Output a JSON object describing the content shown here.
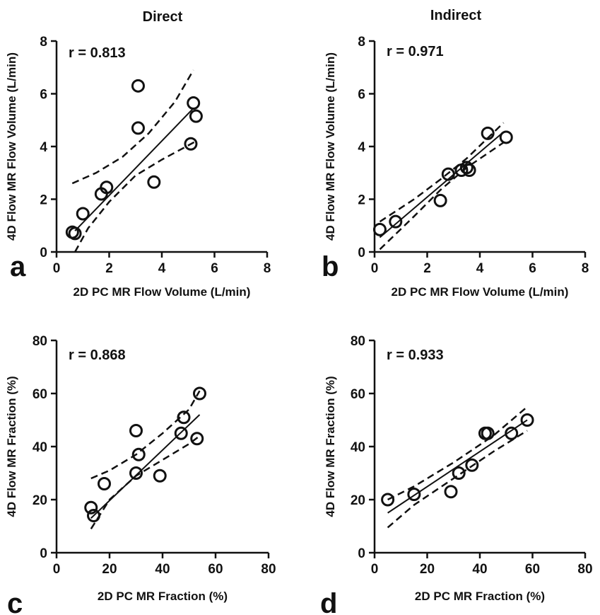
{
  "column_titles": [
    "Direct",
    "Indirect"
  ],
  "chart_data": [
    {
      "type": "scatter",
      "panel": "a",
      "title": "Direct",
      "r_label": "r = 0.813",
      "xlabel": "2D PC MR Flow Volume (L/min)",
      "ylabel": "4D Flow MR Flow Volume (L/min)",
      "xlim": [
        0,
        8
      ],
      "ylim": [
        0,
        8
      ],
      "xticks": [
        0,
        2,
        4,
        6,
        8
      ],
      "yticks": [
        0,
        2,
        4,
        6,
        8
      ],
      "points": [
        {
          "x": 0.6,
          "y": 0.75
        },
        {
          "x": 0.7,
          "y": 0.7
        },
        {
          "x": 1.0,
          "y": 1.45
        },
        {
          "x": 1.7,
          "y": 2.2
        },
        {
          "x": 1.9,
          "y": 2.45
        },
        {
          "x": 3.1,
          "y": 6.3
        },
        {
          "x": 3.1,
          "y": 4.7
        },
        {
          "x": 3.7,
          "y": 2.65
        },
        {
          "x": 5.1,
          "y": 4.1
        },
        {
          "x": 5.2,
          "y": 5.65
        },
        {
          "x": 5.3,
          "y": 5.15
        }
      ],
      "fit": [
        [
          0.7,
          0.8
        ],
        [
          5.2,
          5.45
        ]
      ],
      "ci_upper": [
        [
          0.6,
          2.6
        ],
        [
          1.5,
          3.0
        ],
        [
          2.5,
          3.6
        ],
        [
          3.5,
          4.5
        ],
        [
          4.5,
          5.7
        ],
        [
          5.2,
          6.9
        ]
      ],
      "ci_lower": [
        [
          0.7,
          0.0
        ],
        [
          1.2,
          0.9
        ],
        [
          2.0,
          1.9
        ],
        [
          3.0,
          2.9
        ],
        [
          4.0,
          3.5
        ],
        [
          5.3,
          4.2
        ]
      ]
    },
    {
      "type": "scatter",
      "panel": "b",
      "title": "Indirect",
      "r_label": "r = 0.971",
      "xlabel": "2D PC MR Flow Volume (L/min)",
      "ylabel": "4D Flow MR Flow Volume (L/min)",
      "xlim": [
        0,
        8
      ],
      "ylim": [
        0,
        8
      ],
      "xticks": [
        0,
        2,
        4,
        6,
        8
      ],
      "yticks": [
        0,
        2,
        4,
        6,
        8
      ],
      "points": [
        {
          "x": 0.2,
          "y": 0.85
        },
        {
          "x": 0.8,
          "y": 1.15
        },
        {
          "x": 2.5,
          "y": 1.95
        },
        {
          "x": 2.8,
          "y": 2.95
        },
        {
          "x": 3.3,
          "y": 3.1
        },
        {
          "x": 3.5,
          "y": 3.2
        },
        {
          "x": 3.6,
          "y": 3.1
        },
        {
          "x": 4.3,
          "y": 4.5
        },
        {
          "x": 5.0,
          "y": 4.35
        }
      ],
      "fit": [
        [
          0.2,
          0.55
        ],
        [
          4.9,
          4.55
        ]
      ],
      "ci_upper": [
        [
          0.2,
          1.15
        ],
        [
          1.5,
          2.0
        ],
        [
          2.5,
          2.75
        ],
        [
          3.5,
          3.55
        ],
        [
          4.9,
          4.9
        ]
      ],
      "ci_lower": [
        [
          0.2,
          0.1
        ],
        [
          1.5,
          1.35
        ],
        [
          2.5,
          2.35
        ],
        [
          3.5,
          3.2
        ],
        [
          4.9,
          4.15
        ]
      ]
    },
    {
      "type": "scatter",
      "panel": "c",
      "r_label": "r = 0.868",
      "xlabel": "2D PC MR Fraction (%)",
      "ylabel": "4D Flow MR Fraction (%)",
      "xlim": [
        0,
        80
      ],
      "ylim": [
        0,
        80
      ],
      "xticks": [
        0,
        20,
        40,
        60,
        80
      ],
      "yticks": [
        0,
        20,
        40,
        60,
        80
      ],
      "points": [
        {
          "x": 13,
          "y": 17
        },
        {
          "x": 14,
          "y": 14
        },
        {
          "x": 18,
          "y": 26
        },
        {
          "x": 30,
          "y": 46
        },
        {
          "x": 30,
          "y": 30
        },
        {
          "x": 31,
          "y": 37
        },
        {
          "x": 39,
          "y": 29
        },
        {
          "x": 47,
          "y": 45
        },
        {
          "x": 48,
          "y": 51
        },
        {
          "x": 53,
          "y": 43
        },
        {
          "x": 54,
          "y": 60
        }
      ],
      "fit": [
        [
          13,
          13
        ],
        [
          54,
          52
        ]
      ],
      "ci_upper": [
        [
          13,
          28
        ],
        [
          20,
          31
        ],
        [
          30,
          37
        ],
        [
          40,
          45
        ],
        [
          50,
          54
        ],
        [
          54,
          61
        ]
      ],
      "ci_lower": [
        [
          13,
          9
        ],
        [
          20,
          20
        ],
        [
          30,
          29
        ],
        [
          40,
          35
        ],
        [
          50,
          41
        ],
        [
          54,
          44
        ]
      ]
    },
    {
      "type": "scatter",
      "panel": "d",
      "r_label": "r = 0.933",
      "xlabel": "2D PC MR Fraction (%)",
      "ylabel": "4D Flow MR Fraction (%)",
      "xlim": [
        0,
        80
      ],
      "ylim": [
        0,
        80
      ],
      "xticks": [
        0,
        20,
        40,
        60,
        80
      ],
      "yticks": [
        0,
        20,
        40,
        60,
        80
      ],
      "points": [
        {
          "x": 5,
          "y": 20
        },
        {
          "x": 15,
          "y": 22
        },
        {
          "x": 29,
          "y": 23
        },
        {
          "x": 32,
          "y": 30
        },
        {
          "x": 37,
          "y": 33
        },
        {
          "x": 42,
          "y": 45
        },
        {
          "x": 43,
          "y": 45
        },
        {
          "x": 52,
          "y": 45
        },
        {
          "x": 58,
          "y": 50
        }
      ],
      "fit": [
        [
          5,
          15
        ],
        [
          58,
          50
        ]
      ],
      "ci_upper": [
        [
          5,
          20
        ],
        [
          15,
          25
        ],
        [
          30,
          34
        ],
        [
          45,
          44
        ],
        [
          58,
          55
        ]
      ],
      "ci_lower": [
        [
          5,
          9.5
        ],
        [
          15,
          18
        ],
        [
          30,
          28
        ],
        [
          45,
          38
        ],
        [
          58,
          46
        ]
      ]
    }
  ]
}
